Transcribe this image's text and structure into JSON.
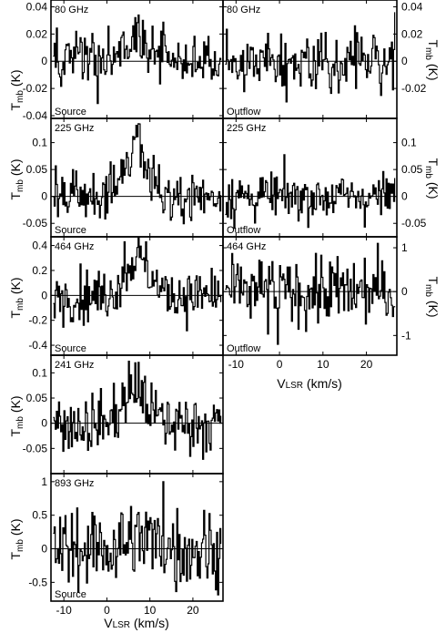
{
  "figure": {
    "y_axis_title_main": "T",
    "y_axis_title_sub": "mb",
    "y_axis_unit": " (K)",
    "x_axis_title_main": "V",
    "x_axis_title_sub": "LSR",
    "x_axis_unit": " (km/s)"
  },
  "chart_data": [
    {
      "type": "line",
      "panel": "80 GHz Source",
      "freq_label": "80 GHz",
      "pos_label": "Source",
      "xlim": [
        -13,
        27
      ],
      "ylim": [
        -0.042,
        0.045
      ],
      "yticks": [
        -0.04,
        -0.02,
        0,
        0.02,
        0.04
      ],
      "ytick_labels": [
        "-0.04",
        "-0.02",
        "0",
        "0.02",
        "0.04"
      ],
      "ytick_side": "left",
      "x_start": -12.5,
      "x_step": 0.25,
      "baseline": 0,
      "line_center": 7,
      "line_width": 3.2,
      "line_peak": 0.012,
      "noise_rms": 0.011,
      "notable_peaks": [
        {
          "x": 6.5,
          "y": 0.032
        },
        {
          "x": 8.2,
          "y": 0.03
        }
      ]
    },
    {
      "type": "line",
      "panel": "80 GHz Outflow",
      "freq_label": "80 GHz",
      "pos_label": "Outflow",
      "xlim": [
        -13,
        27
      ],
      "ylim": [
        -0.042,
        0.045
      ],
      "yticks": [
        -0.02,
        0,
        0.02,
        0.04
      ],
      "ytick_labels": [
        "-0.02",
        "0",
        "0.02",
        "0.04"
      ],
      "ytick_side": "right",
      "x_start": -12.5,
      "x_step": 0.25,
      "baseline": 0,
      "line_center": 0,
      "line_width": 1,
      "line_peak": 0,
      "noise_rms": 0.011,
      "notable_peaks": [
        {
          "x": 26.5,
          "y": 0.036
        }
      ]
    },
    {
      "type": "line",
      "panel": "225 GHz Source",
      "freq_label": "225 GHz",
      "pos_label": "Source",
      "xlim": [
        -13,
        27
      ],
      "ylim": [
        -0.075,
        0.145
      ],
      "yticks": [
        -0.05,
        0,
        0.05,
        0.1
      ],
      "ytick_labels": [
        "-0.05",
        "0",
        "0.05",
        "0.1"
      ],
      "ytick_side": "left",
      "x_start": -12.5,
      "x_step": 0.25,
      "baseline": 0,
      "line_center": 7,
      "line_width": 2.4,
      "line_peak": 0.105,
      "noise_rms": 0.024,
      "notable_peaks": [
        {
          "x": 7.2,
          "y": 0.135
        }
      ]
    },
    {
      "type": "line",
      "panel": "225 GHz Outflow",
      "freq_label": "225 GHz",
      "pos_label": "Outflow",
      "xlim": [
        -13,
        27
      ],
      "ylim": [
        -0.075,
        0.145
      ],
      "yticks": [
        -0.05,
        0,
        0.05,
        0.1
      ],
      "ytick_labels": [
        "-0.05",
        "0",
        "0.05",
        "0.1"
      ],
      "ytick_side": "right",
      "x_start": -12.5,
      "x_step": 0.25,
      "baseline": 0,
      "line_center": 0,
      "line_width": 1,
      "line_peak": 0,
      "noise_rms": 0.022,
      "notable_peaks": []
    },
    {
      "type": "line",
      "panel": "464 GHz Source",
      "freq_label": "464 GHz",
      "pos_label": "Source",
      "xlim": [
        -13,
        27
      ],
      "ylim": [
        -0.48,
        0.47
      ],
      "yticks": [
        -0.4,
        -0.2,
        0,
        0.2,
        0.4
      ],
      "ytick_labels": [
        "-0.4",
        "-0.2",
        "0",
        "0.2",
        "0.4"
      ],
      "ytick_side": "left",
      "x_start": -12.5,
      "x_step": 0.25,
      "baseline": 0,
      "line_center": 7,
      "line_width": 2.8,
      "line_peak": 0.3,
      "noise_rms": 0.1,
      "notable_peaks": [
        {
          "x": 4.0,
          "y": 0.43
        },
        {
          "x": 9.0,
          "y": 0.43
        }
      ]
    },
    {
      "type": "line",
      "panel": "464 GHz Outflow",
      "freq_label": "464 GHz",
      "pos_label": "Outflow",
      "xlim": [
        -13,
        27
      ],
      "ylim": [
        -1.45,
        1.25
      ],
      "yticks": [
        -1,
        0,
        1
      ],
      "ytick_labels": [
        "-1",
        "0",
        "1"
      ],
      "ytick_side": "right",
      "x_start": -12.5,
      "x_step": 0.25,
      "baseline": 0,
      "line_center": 0,
      "line_width": 1,
      "line_peak": 0,
      "noise_rms": 0.4,
      "notable_peaks": [
        {
          "x": -0.5,
          "y": -1.2
        }
      ],
      "xticks": [
        -10,
        0,
        10,
        20
      ],
      "xtick_labels": [
        "-10",
        "0",
        "10",
        "20"
      ]
    },
    {
      "type": "line",
      "panel": "241 GHz Source",
      "freq_label": "241 GHz",
      "pos_label": "",
      "xlim": [
        -13,
        27
      ],
      "ylim": [
        -0.1,
        0.135
      ],
      "yticks": [
        -0.05,
        0,
        0.05,
        0.1
      ],
      "ytick_labels": [
        "-0.05",
        "0",
        "0.05",
        "0.1"
      ],
      "ytick_side": "left",
      "x_start": -12.5,
      "x_step": 0.25,
      "baseline": 0,
      "line_center": 6.5,
      "line_width": 2.8,
      "line_peak": 0.065,
      "noise_rms": 0.03,
      "notable_peaks": [
        {
          "x": 6.5,
          "y": 0.12
        }
      ]
    },
    {
      "type": "line",
      "panel": "893 GHz Source",
      "freq_label": "893 GHz",
      "pos_label": "Source",
      "xlim": [
        -13,
        27
      ],
      "ylim": [
        -0.78,
        1.12
      ],
      "yticks": [
        -0.5,
        0,
        0.5,
        1
      ],
      "ytick_labels": [
        "-0.5",
        "0",
        "0.5",
        "1"
      ],
      "ytick_side": "left",
      "x_start": -12.5,
      "x_step": 0.25,
      "baseline": 0,
      "line_center": 8,
      "line_width": 4,
      "line_peak": 0.15,
      "noise_rms": 0.3,
      "notable_peaks": [
        {
          "x": 13.0,
          "y": 1.0
        }
      ],
      "xticks": [
        -10,
        0,
        10,
        20
      ],
      "xtick_labels": [
        "-10",
        "0",
        "10",
        "20"
      ]
    }
  ]
}
